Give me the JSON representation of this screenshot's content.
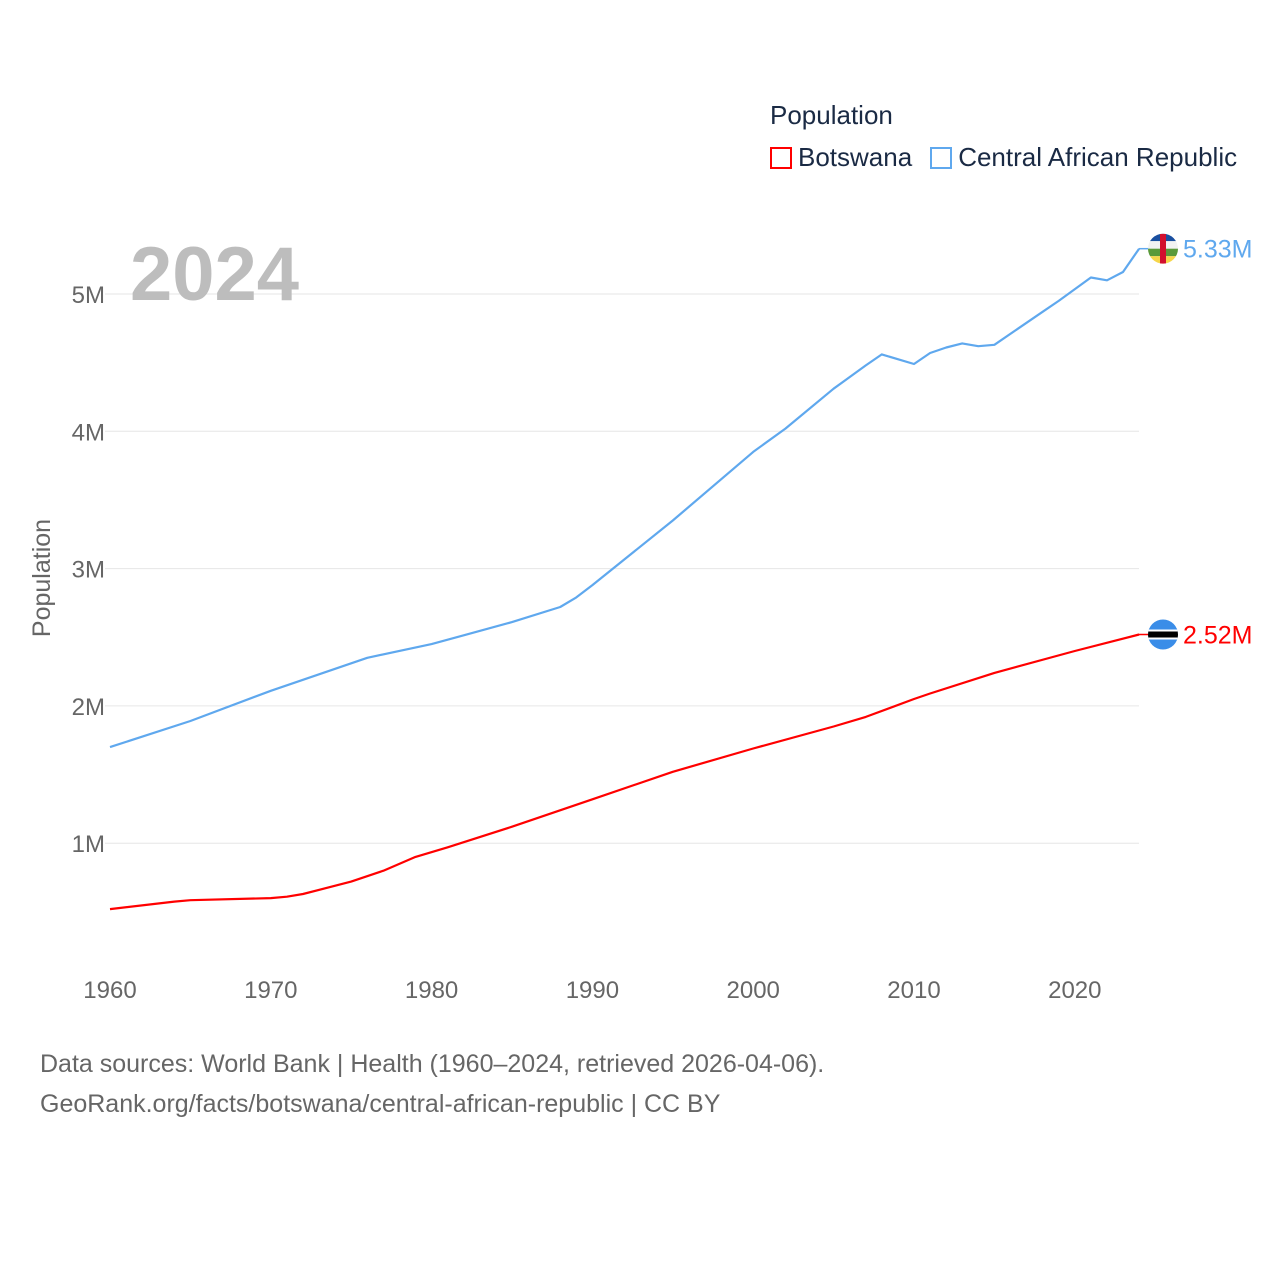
{
  "chart_data": {
    "type": "line",
    "title": "",
    "big_year_label": "2024",
    "xlabel": "",
    "ylabel": "Population",
    "xlim": [
      1960,
      2024
    ],
    "ylim": [
      0,
      5400000
    ],
    "x_ticks": [
      "1960",
      "1970",
      "1980",
      "1990",
      "2000",
      "2010",
      "2020"
    ],
    "y_ticks": [
      {
        "value": 1000000,
        "label": "1M"
      },
      {
        "value": 2000000,
        "label": "2M"
      },
      {
        "value": 3000000,
        "label": "3M"
      },
      {
        "value": 4000000,
        "label": "4M"
      },
      {
        "value": 5000000,
        "label": "5M"
      }
    ],
    "grid": true,
    "legend_title": "Population",
    "legend_position": "top-right",
    "series": [
      {
        "name": "Botswana",
        "color": "#ff0000",
        "end_label": "2.52M",
        "flag": "botswana-flag",
        "x": [
          1960,
          1964,
          1965,
          1970,
          1971,
          1972,
          1975,
          1977,
          1979,
          1981,
          1985,
          1990,
          1995,
          2000,
          2005,
          2007,
          2010,
          2011,
          2015,
          2020,
          2024
        ],
        "values": [
          520000,
          575000,
          585000,
          600000,
          610000,
          630000,
          720000,
          800000,
          900000,
          970000,
          1120000,
          1320000,
          1520000,
          1690000,
          1850000,
          1920000,
          2050000,
          2090000,
          2240000,
          2400000,
          2520000
        ]
      },
      {
        "name": "Central African Republic",
        "color": "#5fa8ee",
        "end_label": "5.33M",
        "flag": "central-african-republic-flag",
        "x": [
          1960,
          1965,
          1970,
          1975,
          1976,
          1980,
          1985,
          1988,
          1989,
          1990,
          1995,
          2000,
          2002,
          2005,
          2007,
          2008,
          2010,
          2011,
          2012,
          2013,
          2014,
          2015,
          2018,
          2019,
          2021,
          2022,
          2023,
          2024
        ],
        "values": [
          1700000,
          1890000,
          2110000,
          2310000,
          2350000,
          2450000,
          2610000,
          2720000,
          2790000,
          2880000,
          3350000,
          3850000,
          4020000,
          4310000,
          4480000,
          4560000,
          4490000,
          4570000,
          4610000,
          4640000,
          4620000,
          4630000,
          4870000,
          4950000,
          5120000,
          5100000,
          5160000,
          5330000
        ]
      }
    ]
  },
  "footer": {
    "line1": "Data sources: World Bank | Health (1960–2024, retrieved 2026-04-06).",
    "line2": "GeoRank.org/facts/botswana/central-african-republic | CC BY"
  }
}
